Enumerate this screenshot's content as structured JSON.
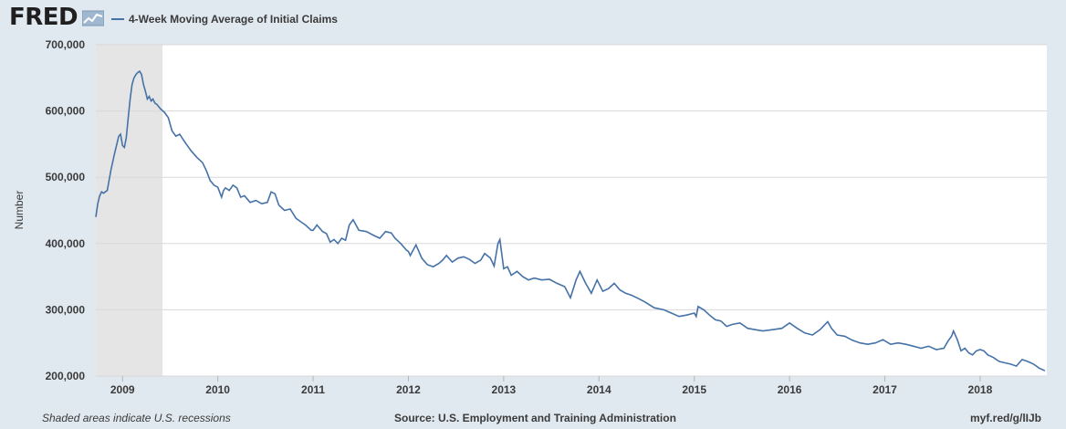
{
  "header": {
    "logo_text": "FRED",
    "logo_icon": "trend-chart-icon",
    "legend_label": "4-Week Moving Average of Initial Claims"
  },
  "footer": {
    "left": "Shaded areas indicate U.S. recessions",
    "center": "Source: U.S. Employment and Training Administration",
    "right": "myf.red/g/lIJb"
  },
  "colors": {
    "background": "#e1e9f0",
    "plot_background": "#ffffff",
    "series_line": "#4572a7",
    "recession_shade": "#e5e5e5",
    "gridline": "#d8d8d8"
  },
  "chart_data": {
    "type": "line",
    "title": "",
    "xlabel": "",
    "ylabel": "Number",
    "ylim": [
      200000,
      700000
    ],
    "xlim": [
      2008.72,
      2018.7
    ],
    "yticks": [
      200000,
      300000,
      400000,
      500000,
      600000,
      700000
    ],
    "ytick_labels": [
      "200,000",
      "300,000",
      "400,000",
      "500,000",
      "600,000",
      "700,000"
    ],
    "xticks": [
      2009,
      2010,
      2011,
      2012,
      2013,
      2014,
      2015,
      2016,
      2017,
      2018
    ],
    "xtick_labels": [
      "2009",
      "2010",
      "2011",
      "2012",
      "2013",
      "2014",
      "2015",
      "2016",
      "2017",
      "2018"
    ],
    "grid": "horizontal",
    "legend_position": "top-left",
    "recessions": [
      [
        2008.72,
        2009.42
      ]
    ],
    "series": [
      {
        "name": "4-Week Moving Average of Initial Claims",
        "x": [
          2008.72,
          2008.74,
          2008.76,
          2008.78,
          2008.8,
          2008.84,
          2008.88,
          2008.92,
          2008.96,
          2008.98,
          2009.0,
          2009.02,
          2009.04,
          2009.06,
          2009.08,
          2009.1,
          2009.12,
          2009.14,
          2009.16,
          2009.18,
          2009.2,
          2009.22,
          2009.24,
          2009.26,
          2009.28,
          2009.3,
          2009.32,
          2009.34,
          2009.36,
          2009.4,
          2009.44,
          2009.48,
          2009.52,
          2009.56,
          2009.6,
          2009.64,
          2009.68,
          2009.72,
          2009.78,
          2009.84,
          2009.88,
          2009.92,
          2009.96,
          2010.0,
          2010.04,
          2010.06,
          2010.08,
          2010.12,
          2010.16,
          2010.2,
          2010.24,
          2010.28,
          2010.34,
          2010.4,
          2010.46,
          2010.52,
          2010.56,
          2010.6,
          2010.64,
          2010.7,
          2010.76,
          2010.82,
          2010.88,
          2010.92,
          2010.98,
          2011.0,
          2011.04,
          2011.1,
          2011.14,
          2011.18,
          2011.22,
          2011.26,
          2011.3,
          2011.34,
          2011.38,
          2011.42,
          2011.48,
          2011.56,
          2011.64,
          2011.7,
          2011.76,
          2011.82,
          2011.86,
          2011.92,
          2011.98,
          2012.0,
          2012.02,
          2012.08,
          2012.14,
          2012.2,
          2012.26,
          2012.32,
          2012.36,
          2012.4,
          2012.46,
          2012.52,
          2012.58,
          2012.64,
          2012.7,
          2012.76,
          2012.8,
          2012.86,
          2012.9,
          2012.94,
          2012.96,
          2013.0,
          2013.04,
          2013.08,
          2013.14,
          2013.2,
          2013.26,
          2013.32,
          2013.4,
          2013.48,
          2013.56,
          2013.64,
          2013.7,
          2013.76,
          2013.8,
          2013.86,
          2013.92,
          2013.98,
          2014.04,
          2014.1,
          2014.16,
          2014.22,
          2014.28,
          2014.34,
          2014.4,
          2014.48,
          2014.58,
          2014.68,
          2014.76,
          2014.84,
          2014.92,
          2015.0,
          2015.02,
          2015.04,
          2015.1,
          2015.16,
          2015.22,
          2015.28,
          2015.34,
          2015.4,
          2015.48,
          2015.56,
          2015.64,
          2015.72,
          2015.82,
          2015.92,
          2016.0,
          2016.08,
          2016.16,
          2016.24,
          2016.32,
          2016.4,
          2016.44,
          2016.5,
          2016.58,
          2016.66,
          2016.74,
          2016.82,
          2016.9,
          2016.98,
          2017.06,
          2017.14,
          2017.22,
          2017.3,
          2017.38,
          2017.46,
          2017.54,
          2017.62,
          2017.66,
          2017.7,
          2017.72,
          2017.76,
          2017.8,
          2017.84,
          2017.88,
          2017.92,
          2017.96,
          2018.0,
          2018.04,
          2018.08,
          2018.14,
          2018.2,
          2018.26,
          2018.32,
          2018.38,
          2018.44,
          2018.5,
          2018.56,
          2018.62,
          2018.68
        ],
        "values": [
          440000,
          460000,
          472000,
          478000,
          476000,
          480000,
          512000,
          538000,
          562000,
          565000,
          548000,
          545000,
          560000,
          590000,
          618000,
          640000,
          650000,
          655000,
          658000,
          660000,
          655000,
          640000,
          630000,
          618000,
          622000,
          615000,
          618000,
          612000,
          610000,
          603000,
          598000,
          590000,
          570000,
          562000,
          565000,
          556000,
          548000,
          540000,
          530000,
          522000,
          510000,
          495000,
          488000,
          485000,
          470000,
          480000,
          484000,
          480000,
          488000,
          484000,
          470000,
          472000,
          462000,
          465000,
          460000,
          462000,
          478000,
          475000,
          458000,
          450000,
          452000,
          438000,
          432000,
          428000,
          420000,
          420000,
          428000,
          418000,
          415000,
          402000,
          406000,
          400000,
          408000,
          405000,
          428000,
          436000,
          420000,
          418000,
          412000,
          408000,
          418000,
          416000,
          408000,
          400000,
          390000,
          388000,
          382000,
          398000,
          378000,
          368000,
          365000,
          370000,
          375000,
          382000,
          372000,
          378000,
          380000,
          376000,
          370000,
          375000,
          385000,
          378000,
          366000,
          400000,
          406000,
          362000,
          365000,
          352000,
          358000,
          350000,
          345000,
          348000,
          345000,
          346000,
          340000,
          335000,
          318000,
          345000,
          358000,
          340000,
          325000,
          345000,
          328000,
          332000,
          340000,
          330000,
          325000,
          322000,
          318000,
          312000,
          303000,
          300000,
          295000,
          290000,
          292000,
          295000,
          290000,
          305000,
          300000,
          292000,
          285000,
          283000,
          275000,
          278000,
          280000,
          272000,
          270000,
          268000,
          270000,
          272000,
          280000,
          272000,
          265000,
          262000,
          270000,
          282000,
          272000,
          262000,
          260000,
          254000,
          250000,
          248000,
          250000,
          255000,
          248000,
          250000,
          248000,
          245000,
          242000,
          245000,
          240000,
          242000,
          252000,
          260000,
          268000,
          255000,
          238000,
          242000,
          235000,
          232000,
          238000,
          240000,
          238000,
          232000,
          228000,
          222000,
          220000,
          218000,
          215000,
          225000,
          222000,
          218000,
          212000,
          208000
        ]
      }
    ]
  }
}
